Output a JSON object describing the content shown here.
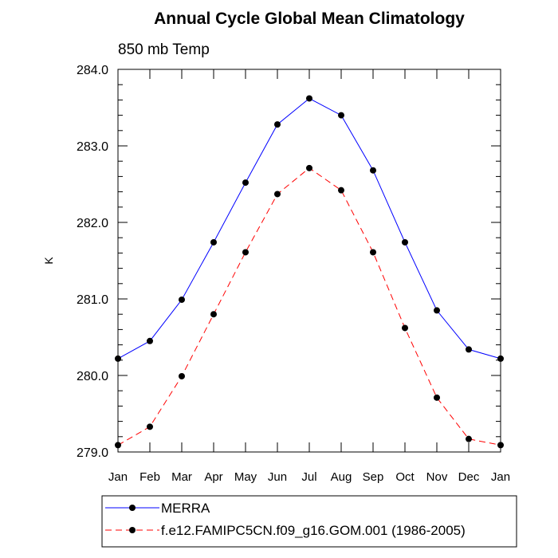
{
  "chart_data": {
    "type": "line",
    "title": "Annual Cycle Global Mean Climatology",
    "subtitle": "850 mb Temp",
    "xlabel": "",
    "ylabel": "K",
    "categories": [
      "Jan",
      "Feb",
      "Mar",
      "Apr",
      "May",
      "Jun",
      "Jul",
      "Aug",
      "Sep",
      "Oct",
      "Nov",
      "Dec",
      "Jan"
    ],
    "ylim": [
      279.0,
      284.0
    ],
    "yticks": [
      "279.0",
      "280.0",
      "281.0",
      "282.0",
      "283.0",
      "284.0"
    ],
    "grid": false,
    "legend_position": "bottom",
    "series": [
      {
        "name": "MERRA",
        "color": "#0000ff",
        "line_style": "solid",
        "marker": "filled-circle",
        "values": [
          280.22,
          280.45,
          280.99,
          281.74,
          282.52,
          283.28,
          283.62,
          283.4,
          282.68,
          281.74,
          280.85,
          280.34,
          280.22
        ]
      },
      {
        "name": "f.e12.FAMIPC5CN.f09_g16.GOM.001 (1986-2005)",
        "color": "#ff0000",
        "line_style": "dashed",
        "marker": "filled-circle",
        "values": [
          279.09,
          279.33,
          279.99,
          280.8,
          281.61,
          282.37,
          282.71,
          282.42,
          281.61,
          280.62,
          279.71,
          279.17,
          279.09
        ]
      }
    ]
  }
}
